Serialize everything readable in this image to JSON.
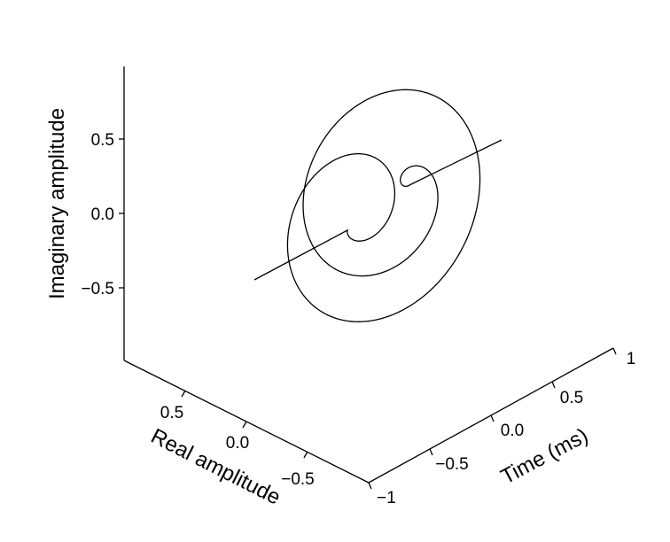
{
  "chart_data": {
    "type": "line",
    "projection": "3d",
    "title": "",
    "axes": {
      "z": {
        "label": "Imaginary amplitude",
        "ticks": [
          -0.5,
          0.0,
          0.5
        ],
        "tick_labels": [
          "−0.5",
          "0.0",
          "0.5"
        ],
        "range": [
          -1,
          1
        ]
      },
      "x": {
        "label": "Real amplitude",
        "ticks": [
          0.5,
          0.0,
          -0.5
        ],
        "tick_labels": [
          "0.5",
          "0.0",
          "−0.5"
        ],
        "range": [
          1,
          -1
        ]
      },
      "y": {
        "label": "Time (ms)",
        "ticks": [
          -1,
          -0.5,
          0.0,
          0.5,
          1
        ],
        "tick_labels": [
          "−1",
          "−0.5",
          "0.0",
          "0.5",
          "1"
        ],
        "range": [
          -1,
          1
        ]
      }
    },
    "series": [
      {
        "description": "rotating complex amplitude (real, imaginary) versus time: a line before and after a double spiral with ring loops",
        "segments": [
          {
            "kind": "line",
            "t": [
              -1.0,
              -0.32
            ],
            "real": 0.0,
            "imag": 0.0
          },
          {
            "kind": "spiral",
            "t": [
              -0.32,
              0.32
            ],
            "note": "amplitude grows from 0 to ~0.95 and back to 0 over three turns"
          },
          {
            "kind": "line",
            "t": [
              0.32,
              1.0
            ],
            "real": 0.0,
            "imag": 0.0
          }
        ]
      }
    ],
    "grid": false,
    "legend": "none"
  }
}
